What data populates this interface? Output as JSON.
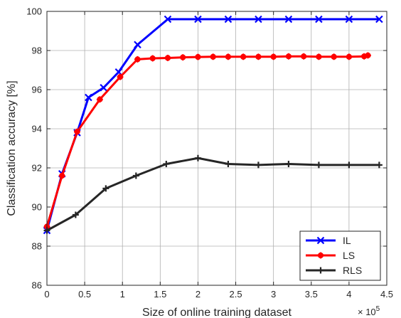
{
  "chart_data": {
    "type": "line",
    "xlabel": "Size of online training dataset",
    "ylabel": "Classification accuracy [%]",
    "x_exponent_label": "× 10",
    "x_exponent_power": "5",
    "xlim": [
      0,
      4.5
    ],
    "ylim": [
      86,
      100
    ],
    "xticks": [
      0,
      0.5,
      1,
      1.5,
      2,
      2.5,
      3,
      3.5,
      4,
      4.5
    ],
    "xtick_labels": [
      "0",
      "0.5",
      "1",
      "1.5",
      "2",
      "2.5",
      "3",
      "3.5",
      "4",
      "4.5"
    ],
    "yticks": [
      86,
      88,
      90,
      92,
      94,
      96,
      98,
      100
    ],
    "ytick_labels": [
      "86",
      "88",
      "90",
      "92",
      "94",
      "96",
      "98",
      "100"
    ],
    "grid": true,
    "legend_position": "bottom-right",
    "series": [
      {
        "name": "IL",
        "color": "#0000ff",
        "marker": "x",
        "x": [
          0,
          0.2,
          0.4,
          0.55,
          0.75,
          0.95,
          1.2,
          1.6,
          2.0,
          2.4,
          2.8,
          3.2,
          3.6,
          4.0,
          4.4
        ],
        "y": [
          88.8,
          91.7,
          93.8,
          95.6,
          96.1,
          96.9,
          98.3,
          99.6,
          99.6,
          99.6,
          99.6,
          99.6,
          99.6,
          99.6,
          99.6
        ]
      },
      {
        "name": "LS",
        "color": "#ff0000",
        "marker": "star",
        "x": [
          0,
          0.2,
          0.4,
          0.7,
          0.97,
          1.2,
          1.4,
          1.6,
          1.8,
          2.0,
          2.2,
          2.4,
          2.6,
          2.8,
          3.0,
          3.2,
          3.4,
          3.6,
          3.8,
          4.0,
          4.2,
          4.25
        ],
        "y": [
          89.0,
          91.6,
          93.85,
          95.5,
          96.65,
          97.55,
          97.6,
          97.62,
          97.65,
          97.67,
          97.68,
          97.68,
          97.68,
          97.68,
          97.68,
          97.7,
          97.7,
          97.68,
          97.68,
          97.68,
          97.7,
          97.75
        ]
      },
      {
        "name": "RLS",
        "color": "#262626",
        "marker": "plus",
        "x": [
          0,
          0.38,
          0.78,
          1.18,
          1.58,
          2.0,
          2.4,
          2.8,
          3.2,
          3.6,
          4.0,
          4.4
        ],
        "y": [
          88.8,
          89.6,
          90.95,
          91.6,
          92.2,
          92.5,
          92.2,
          92.15,
          92.2,
          92.15,
          92.15,
          92.15
        ]
      }
    ]
  }
}
